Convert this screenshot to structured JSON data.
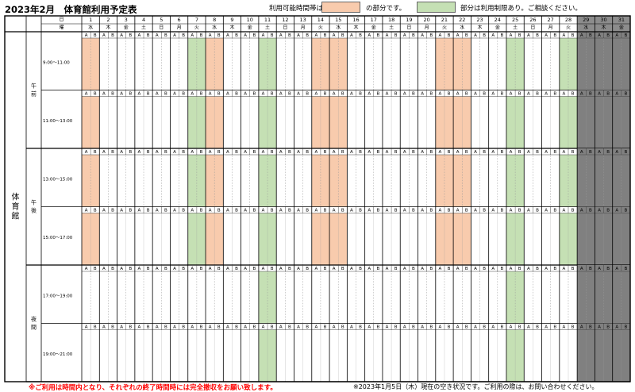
{
  "title": "2023年2月　体育館利用予定表",
  "legend": {
    "available_prefix": "利用可能時間帯は",
    "available_suffix": "の部分です。",
    "restricted_suffix": "部分は利用制限あり。ご相談ください。",
    "available_color": "#f8cbad",
    "restricted_color": "#c5e0b4",
    "closed_color": "#808080"
  },
  "header": {
    "day_label": "日",
    "weekday_label": "曜"
  },
  "facility": "体育館",
  "ab": [
    "A",
    "B"
  ],
  "days": [
    {
      "day": "1",
      "weekday": "水",
      "status": "available"
    },
    {
      "day": "2",
      "weekday": "木",
      "status": "none"
    },
    {
      "day": "3",
      "weekday": "金",
      "status": "none"
    },
    {
      "day": "4",
      "weekday": "土",
      "status": "none"
    },
    {
      "day": "5",
      "weekday": "日",
      "status": "none"
    },
    {
      "day": "6",
      "weekday": "月",
      "status": "none"
    },
    {
      "day": "7",
      "weekday": "火",
      "status": "restricted"
    },
    {
      "day": "8",
      "weekday": "水",
      "status": "available"
    },
    {
      "day": "9",
      "weekday": "木",
      "status": "none"
    },
    {
      "day": "10",
      "weekday": "金",
      "status": "none"
    },
    {
      "day": "11",
      "weekday": "土",
      "status": "restricted"
    },
    {
      "day": "12",
      "weekday": "日",
      "status": "none"
    },
    {
      "day": "13",
      "weekday": "月",
      "status": "none"
    },
    {
      "day": "14",
      "weekday": "火",
      "status": "available"
    },
    {
      "day": "15",
      "weekday": "水",
      "status": "available"
    },
    {
      "day": "16",
      "weekday": "木",
      "status": "none"
    },
    {
      "day": "17",
      "weekday": "金",
      "status": "none"
    },
    {
      "day": "18",
      "weekday": "土",
      "status": "none"
    },
    {
      "day": "19",
      "weekday": "日",
      "status": "none"
    },
    {
      "day": "20",
      "weekday": "月",
      "status": "none"
    },
    {
      "day": "21",
      "weekday": "火",
      "status": "available"
    },
    {
      "day": "22",
      "weekday": "水",
      "status": "available"
    },
    {
      "day": "23",
      "weekday": "木",
      "status": "none"
    },
    {
      "day": "24",
      "weekday": "金",
      "status": "none"
    },
    {
      "day": "25",
      "weekday": "土",
      "status": "restricted"
    },
    {
      "day": "26",
      "weekday": "日",
      "status": "none"
    },
    {
      "day": "27",
      "weekday": "月",
      "status": "none"
    },
    {
      "day": "28",
      "weekday": "火",
      "status": "restricted"
    },
    {
      "day": "29",
      "weekday": "水",
      "status": "closed"
    },
    {
      "day": "30",
      "weekday": "木",
      "status": "closed"
    },
    {
      "day": "31",
      "weekday": "金",
      "status": "closed"
    }
  ],
  "periods": [
    {
      "label": "午前",
      "slots": [
        {
          "time": "9:00～11:00",
          "highlight": true
        },
        {
          "time": "11:00～13:00",
          "highlight": true
        }
      ]
    },
    {
      "label": "午後",
      "slots": [
        {
          "time": "13:00～15:00",
          "highlight": true
        },
        {
          "time": "15:00～17:00",
          "highlight": true
        }
      ]
    },
    {
      "label": "夜間",
      "slots": [
        {
          "time": "17:00～19:00",
          "highlight": false
        },
        {
          "time": "19:00～21:00",
          "highlight": false
        }
      ]
    }
  ],
  "night_restricted_days": [
    "11",
    "25"
  ],
  "footer": {
    "warning": "※ご利用は時間内となり、それぞれの終了時間時には完全撤収をお願い致します。",
    "note": "※2023年1月5日（木）現在の空き状況です。ご利用の際は、お問い合わせください。"
  }
}
